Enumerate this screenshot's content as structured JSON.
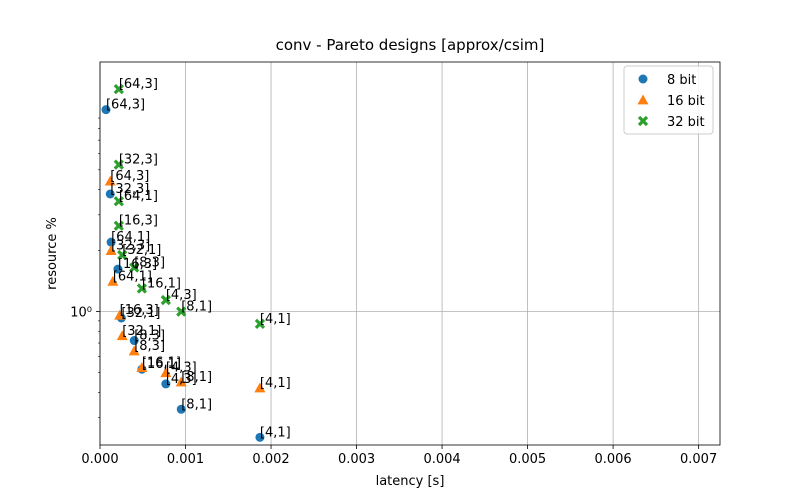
{
  "chart_data": {
    "type": "scatter",
    "title": "conv - Pareto designs [approx/csim]",
    "xlabel": "latency [s]",
    "ylabel": "resource %",
    "xlim": [
      0,
      0.00725
    ],
    "ylim": [
      0.22,
      17
    ],
    "yscale": "log",
    "grid": true,
    "legend_position": "top-right",
    "x_ticks": [
      0,
      0.001,
      0.002,
      0.003,
      0.004,
      0.005,
      0.006,
      0.007
    ],
    "x_tick_labels": [
      "0.000",
      "0.001",
      "0.002",
      "0.003",
      "0.004",
      "0.005",
      "0.006",
      "0.007"
    ],
    "y_ticks": [
      1
    ],
    "y_tick_labels": [
      "10⁰"
    ],
    "series": [
      {
        "name": "8 bit",
        "color": "#1f77b4",
        "marker": "circle",
        "points": [
          {
            "x": 7e-05,
            "y": 9.9,
            "label": "[64,3]"
          },
          {
            "x": 0.00012,
            "y": 3.8,
            "label": "[32,3]"
          },
          {
            "x": 0.00013,
            "y": 2.2,
            "label": "[64,1]"
          },
          {
            "x": 0.00021,
            "y": 1.62,
            "label": "[16,3]"
          },
          {
            "x": 0.00025,
            "y": 0.93,
            "label": "[32,1]"
          },
          {
            "x": 0.0004,
            "y": 0.72,
            "label": "[8,3]"
          },
          {
            "x": 0.00049,
            "y": 0.52,
            "label": "[16,1]"
          },
          {
            "x": 0.00077,
            "y": 0.44,
            "label": "[4,3]"
          },
          {
            "x": 0.00095,
            "y": 0.33,
            "label": "[8,1]"
          },
          {
            "x": 0.00187,
            "y": 0.24,
            "label": "[4,1]"
          }
        ]
      },
      {
        "name": "16 bit",
        "color": "#ff7f0e",
        "marker": "triangle",
        "points": [
          {
            "x": 0.00012,
            "y": 4.4,
            "label": "[64,3]"
          },
          {
            "x": 0.00013,
            "y": 2.0,
            "label": "[32,3]"
          },
          {
            "x": 0.00015,
            "y": 1.41,
            "label": "[64,1]"
          },
          {
            "x": 0.00023,
            "y": 0.96,
            "label": "[16,3]"
          },
          {
            "x": 0.00026,
            "y": 0.76,
            "label": "[32,1]"
          },
          {
            "x": 0.0004,
            "y": 0.64,
            "label": "[8,3]"
          },
          {
            "x": 0.00049,
            "y": 0.53,
            "label": "[16,1]"
          },
          {
            "x": 0.00077,
            "y": 0.5,
            "label": "[4,3]"
          },
          {
            "x": 0.00095,
            "y": 0.45,
            "label": "[8,1]"
          },
          {
            "x": 0.00187,
            "y": 0.42,
            "label": "[4,1]"
          }
        ]
      },
      {
        "name": "32 bit",
        "color": "#2ca02c",
        "marker": "x",
        "points": [
          {
            "x": 0.00022,
            "y": 12.5,
            "label": "[64,3]"
          },
          {
            "x": 0.00022,
            "y": 5.3,
            "label": "[32,3]"
          },
          {
            "x": 0.00022,
            "y": 3.5,
            "label": "[64,1]"
          },
          {
            "x": 0.00022,
            "y": 2.65,
            "label": "[16,3]"
          },
          {
            "x": 0.00026,
            "y": 1.9,
            "label": "[32,1]"
          },
          {
            "x": 0.0004,
            "y": 1.65,
            "label": "[8,3]"
          },
          {
            "x": 0.00049,
            "y": 1.3,
            "label": "[16,1]"
          },
          {
            "x": 0.00077,
            "y": 1.14,
            "label": "[4,3]"
          },
          {
            "x": 0.00095,
            "y": 1.0,
            "label": "[8,1]"
          },
          {
            "x": 0.00187,
            "y": 0.87,
            "label": "[4,1]"
          }
        ]
      }
    ]
  }
}
